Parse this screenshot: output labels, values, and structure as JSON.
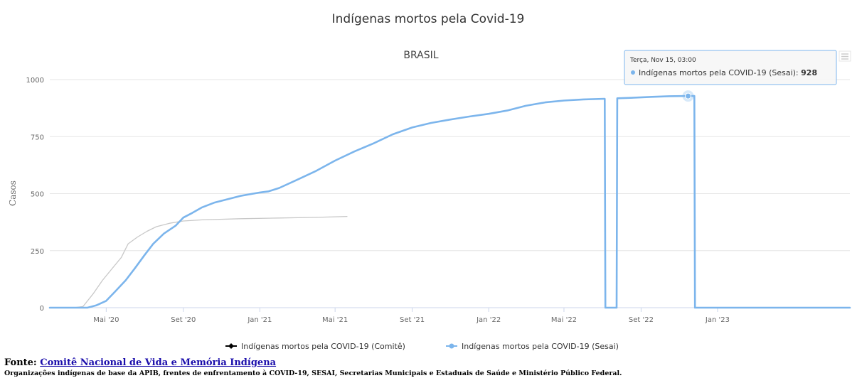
{
  "chart_data": {
    "type": "line",
    "title": "Indígenas mortos pela Covid-19",
    "subtitle": "BRASIL",
    "ylabel": "Casos",
    "xlabel": "",
    "ylim": [
      0,
      1000
    ],
    "yticks": [
      0,
      250,
      500,
      750,
      1000
    ],
    "grid": true,
    "legend_position": "bottom-center",
    "xlim": [
      "2020-02-01",
      "2023-07-31"
    ],
    "xticks": [
      {
        "date": "2020-05-01",
        "label": "Mai '20"
      },
      {
        "date": "2020-09-01",
        "label": "Set '20"
      },
      {
        "date": "2021-01-01",
        "label": "Jan '21"
      },
      {
        "date": "2021-05-01",
        "label": "Mai '21"
      },
      {
        "date": "2021-09-01",
        "label": "Set '21"
      },
      {
        "date": "2022-01-01",
        "label": "Jan '22"
      },
      {
        "date": "2022-05-01",
        "label": "Mai '22"
      },
      {
        "date": "2022-09-01",
        "label": "Set '22"
      },
      {
        "date": "2023-01-01",
        "label": "Jan '23"
      }
    ],
    "series": [
      {
        "name": "Indígenas mortos pela COVID-19 (Comitê)",
        "color": "#000000",
        "line_color": "#c8c8c8",
        "marker": "diamond",
        "points": [
          [
            "2020-03-10",
            0
          ],
          [
            "2020-03-25",
            5
          ],
          [
            "2020-04-10",
            60
          ],
          [
            "2020-04-25",
            120
          ],
          [
            "2020-05-10",
            170
          ],
          [
            "2020-05-25",
            220
          ],
          [
            "2020-06-05",
            280
          ],
          [
            "2020-06-20",
            310
          ],
          [
            "2020-07-05",
            335
          ],
          [
            "2020-07-20",
            355
          ],
          [
            "2020-08-10",
            370
          ],
          [
            "2020-09-01",
            380
          ],
          [
            "2020-10-01",
            385
          ],
          [
            "2020-12-01",
            390
          ],
          [
            "2021-02-01",
            393
          ],
          [
            "2021-04-01",
            396
          ],
          [
            "2021-05-20",
            400
          ]
        ]
      },
      {
        "name": "Indígenas mortos pela COVID-19 (Sesai)",
        "color": "#7cb5ec",
        "marker": "circle",
        "points": [
          [
            "2020-02-01",
            0
          ],
          [
            "2020-04-01",
            0
          ],
          [
            "2020-04-15",
            10
          ],
          [
            "2020-05-01",
            30
          ],
          [
            "2020-05-15",
            70
          ],
          [
            "2020-06-01",
            120
          ],
          [
            "2020-06-15",
            170
          ],
          [
            "2020-07-01",
            230
          ],
          [
            "2020-07-15",
            280
          ],
          [
            "2020-08-01",
            325
          ],
          [
            "2020-08-20",
            360
          ],
          [
            "2020-09-01",
            395
          ],
          [
            "2020-09-15",
            415
          ],
          [
            "2020-10-01",
            440
          ],
          [
            "2020-10-20",
            460
          ],
          [
            "2020-11-10",
            475
          ],
          [
            "2020-12-01",
            490
          ],
          [
            "2021-01-01",
            505
          ],
          [
            "2021-01-15",
            510
          ],
          [
            "2021-02-01",
            525
          ],
          [
            "2021-03-01",
            560
          ],
          [
            "2021-04-01",
            600
          ],
          [
            "2021-05-01",
            645
          ],
          [
            "2021-06-01",
            685
          ],
          [
            "2021-07-01",
            720
          ],
          [
            "2021-08-01",
            760
          ],
          [
            "2021-09-01",
            790
          ],
          [
            "2021-10-01",
            810
          ],
          [
            "2021-11-01",
            825
          ],
          [
            "2021-12-01",
            838
          ],
          [
            "2022-01-01",
            850
          ],
          [
            "2022-02-01",
            865
          ],
          [
            "2022-03-01",
            885
          ],
          [
            "2022-04-01",
            900
          ],
          [
            "2022-05-01",
            908
          ],
          [
            "2022-06-01",
            913
          ],
          [
            "2022-07-05",
            916
          ],
          [
            "2022-07-06",
            0
          ],
          [
            "2022-07-24",
            0
          ],
          [
            "2022-07-25",
            918
          ],
          [
            "2022-08-15",
            920
          ],
          [
            "2022-09-15",
            924
          ],
          [
            "2022-10-15",
            927
          ],
          [
            "2022-11-15",
            928
          ],
          [
            "2022-11-25",
            928
          ],
          [
            "2022-11-26",
            0
          ],
          [
            "2023-07-31",
            0
          ]
        ]
      }
    ],
    "tooltip": {
      "header": "Terça, Nov 15, 03:00",
      "series_name": "Indígenas mortos pela COVID-19 (Sesai):",
      "value": "928",
      "point_date": "2022-11-15",
      "point_value": 928
    }
  },
  "footer": {
    "source_prefix": "Fonte:",
    "source_link": "Comitê Nacional de Vida e Memória Indígena",
    "organizations": "Organizações indígenas de base da APIB, frentes de enfrentamento à COVID-19, SESAI, Secretarias Municipais e Estaduais de Saúde e Ministério Público Federal."
  },
  "menu_icon": "hamburger-menu-icon"
}
